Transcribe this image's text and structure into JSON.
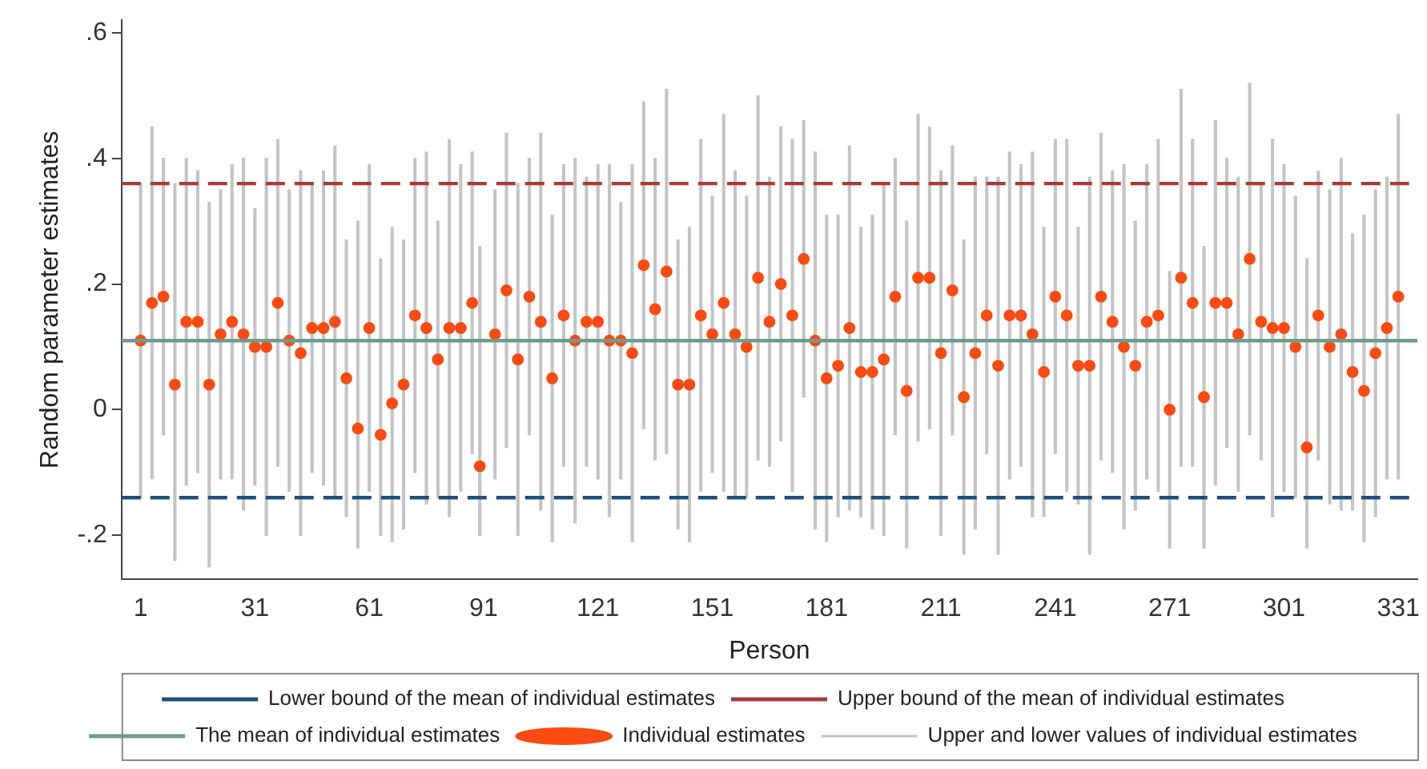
{
  "chart_data": {
    "type": "scatter",
    "xlabel": "Person",
    "ylabel": "Random parameter estimates",
    "xlim": [
      -4,
      336
    ],
    "xticks": [
      1,
      31,
      61,
      91,
      121,
      151,
      181,
      211,
      241,
      271,
      301,
      331
    ],
    "ylim": [
      -0.27,
      0.62
    ],
    "yticks": [
      {
        "value": -0.2,
        "label": "-.2"
      },
      0,
      {
        "value": 0.2,
        "label": ".2"
      },
      {
        "value": 0.4,
        "label": ".4"
      },
      {
        "value": 0.6,
        "label": ".6"
      }
    ],
    "grid": false,
    "legend": "bottom",
    "marker": "circle",
    "series": [
      {
        "type": "bar",
        "name": "Upper and lower values of individual estimates",
        "color": "#c4c4c4",
        "x": [
          1,
          4,
          7,
          10,
          13,
          16,
          19,
          22,
          25,
          28,
          31,
          34,
          37,
          40,
          43,
          46,
          49,
          52,
          55,
          58,
          61,
          64,
          67,
          70,
          73,
          76,
          79,
          82,
          85,
          88,
          90,
          94,
          97,
          100,
          103,
          106,
          109,
          112,
          115,
          118,
          121,
          124,
          127,
          130,
          133,
          136,
          139,
          142,
          145,
          148,
          151,
          154,
          157,
          160,
          163,
          166,
          169,
          172,
          175,
          178,
          181,
          184,
          187,
          190,
          193,
          196,
          199,
          202,
          205,
          208,
          211,
          214,
          217,
          220,
          223,
          226,
          229,
          232,
          235,
          238,
          241,
          244,
          247,
          250,
          253,
          256,
          259,
          262,
          265,
          268,
          271,
          274,
          277,
          280,
          283,
          286,
          289,
          292,
          295,
          298,
          301,
          304,
          307,
          310,
          313,
          316,
          319,
          322,
          325,
          328,
          331
        ],
        "base": [
          -0.14,
          -0.11,
          -0.04,
          -0.24,
          -0.12,
          -0.1,
          -0.25,
          -0.11,
          -0.11,
          -0.16,
          -0.12,
          -0.2,
          -0.09,
          -0.13,
          -0.2,
          -0.1,
          -0.12,
          -0.14,
          -0.17,
          -0.22,
          -0.13,
          -0.2,
          -0.21,
          -0.19,
          -0.1,
          -0.15,
          -0.14,
          -0.17,
          -0.13,
          -0.07,
          -0.2,
          -0.11,
          -0.06,
          -0.2,
          -0.04,
          -0.16,
          -0.21,
          -0.09,
          -0.18,
          -0.09,
          -0.11,
          -0.17,
          -0.11,
          -0.21,
          -0.03,
          -0.08,
          -0.07,
          -0.19,
          -0.21,
          -0.13,
          -0.1,
          -0.13,
          -0.14,
          -0.14,
          -0.08,
          -0.09,
          -0.05,
          -0.13,
          0.02,
          -0.19,
          -0.21,
          -0.17,
          -0.16,
          -0.17,
          -0.19,
          -0.2,
          -0.04,
          -0.22,
          -0.05,
          -0.03,
          -0.2,
          -0.04,
          -0.23,
          -0.19,
          -0.07,
          -0.23,
          -0.11,
          -0.09,
          -0.17,
          -0.17,
          -0.07,
          -0.13,
          -0.15,
          -0.23,
          -0.08,
          -0.1,
          -0.19,
          -0.16,
          -0.11,
          -0.13,
          -0.22,
          -0.09,
          -0.09,
          -0.22,
          -0.12,
          -0.06,
          -0.13,
          -0.04,
          -0.08,
          -0.17,
          -0.13,
          -0.14,
          -0.22,
          -0.08,
          -0.15,
          -0.16,
          -0.16,
          -0.21,
          -0.17,
          -0.11,
          -0.11
        ],
        "values": [
          0.5,
          0.56,
          0.44,
          0.6,
          0.52,
          0.48,
          0.58,
          0.46,
          0.5,
          0.56,
          0.44,
          0.6,
          0.52,
          0.48,
          0.58,
          0.46,
          0.5,
          0.56,
          0.44,
          0.52,
          0.52,
          0.44,
          0.5,
          0.46,
          0.5,
          0.56,
          0.44,
          0.6,
          0.52,
          0.48,
          0.46,
          0.46,
          0.5,
          0.56,
          0.44,
          0.6,
          0.52,
          0.48,
          0.58,
          0.46,
          0.5,
          0.56,
          0.44,
          0.6,
          0.52,
          0.48,
          0.58,
          0.46,
          0.5,
          0.56,
          0.44,
          0.6,
          0.52,
          0.48,
          0.58,
          0.46,
          0.5,
          0.56,
          0.44,
          0.6,
          0.52,
          0.48,
          0.58,
          0.46,
          0.5,
          0.56,
          0.44,
          0.52,
          0.52,
          0.48,
          0.58,
          0.46,
          0.5,
          0.56,
          0.44,
          0.6,
          0.52,
          0.48,
          0.58,
          0.46,
          0.5,
          0.56,
          0.44,
          0.6,
          0.52,
          0.48,
          0.58,
          0.46,
          0.5,
          0.56,
          0.44,
          0.6,
          0.52,
          0.48,
          0.58,
          0.46,
          0.5,
          0.56,
          0.44,
          0.6,
          0.52,
          0.48,
          0.46,
          0.46,
          0.5,
          0.56,
          0.44,
          0.52,
          0.52,
          0.48,
          0.58
        ]
      },
      {
        "name": "Individual estimates",
        "color": "#fb4a12",
        "x": [
          1,
          4,
          7,
          10,
          13,
          16,
          19,
          22,
          25,
          28,
          31,
          34,
          37,
          40,
          43,
          46,
          49,
          52,
          55,
          58,
          61,
          64,
          67,
          70,
          73,
          76,
          79,
          82,
          85,
          88,
          90,
          94,
          97,
          100,
          103,
          106,
          109,
          112,
          115,
          118,
          121,
          124,
          127,
          130,
          133,
          136,
          139,
          142,
          145,
          148,
          151,
          154,
          157,
          160,
          163,
          166,
          169,
          172,
          175,
          178,
          181,
          184,
          187,
          190,
          193,
          196,
          199,
          202,
          205,
          208,
          211,
          214,
          217,
          220,
          223,
          226,
          229,
          232,
          235,
          238,
          241,
          244,
          247,
          250,
          253,
          256,
          259,
          262,
          265,
          268,
          271,
          274,
          277,
          280,
          283,
          286,
          289,
          292,
          295,
          298,
          301,
          304,
          307,
          310,
          313,
          316,
          319,
          322,
          325,
          328,
          331
        ],
        "values": [
          0.11,
          0.17,
          0.18,
          0.04,
          0.14,
          0.14,
          0.04,
          0.12,
          0.14,
          0.12,
          0.1,
          0.1,
          0.17,
          0.11,
          0.09,
          0.13,
          0.13,
          0.14,
          0.05,
          -0.03,
          0.13,
          -0.04,
          0.01,
          0.04,
          0.15,
          0.13,
          0.08,
          0.13,
          0.13,
          0.17,
          -0.09,
          0.12,
          0.19,
          0.08,
          0.18,
          0.14,
          0.05,
          0.15,
          0.11,
          0.14,
          0.14,
          0.11,
          0.11,
          0.09,
          0.23,
          0.16,
          0.22,
          0.04,
          0.04,
          0.15,
          0.12,
          0.17,
          0.12,
          0.1,
          0.21,
          0.14,
          0.2,
          0.15,
          0.24,
          0.11,
          0.05,
          0.07,
          0.13,
          0.06,
          0.06,
          0.08,
          0.18,
          0.03,
          0.21,
          0.21,
          0.09,
          0.19,
          0.02,
          0.09,
          0.15,
          0.07,
          0.15,
          0.15,
          0.12,
          0.06,
          0.18,
          0.15,
          0.07,
          0.07,
          0.18,
          0.14,
          0.1,
          0.07,
          0.14,
          0.15,
          0.0,
          0.21,
          0.17,
          0.02,
          0.17,
          0.17,
          0.12,
          0.24,
          0.14,
          0.13,
          0.13,
          0.1,
          -0.06,
          0.15,
          0.1,
          0.12,
          0.06,
          0.03,
          0.09,
          0.13,
          0.18
        ]
      }
    ],
    "ref_lines": [
      {
        "axis": "y",
        "value": -0.14,
        "label": "Lower bound of the mean of individual estimates",
        "color": "#1f4e79",
        "line_style": "dashed"
      },
      {
        "axis": "y",
        "value": 0.36,
        "label": "Upper bound of the mean of individual estimates",
        "color": "#a83a3a",
        "line_style": "dashed"
      },
      {
        "axis": "y",
        "value": 0.11,
        "label": "The mean of individual estimates",
        "color": "#6f9c8c",
        "line_style": "solid"
      }
    ]
  }
}
